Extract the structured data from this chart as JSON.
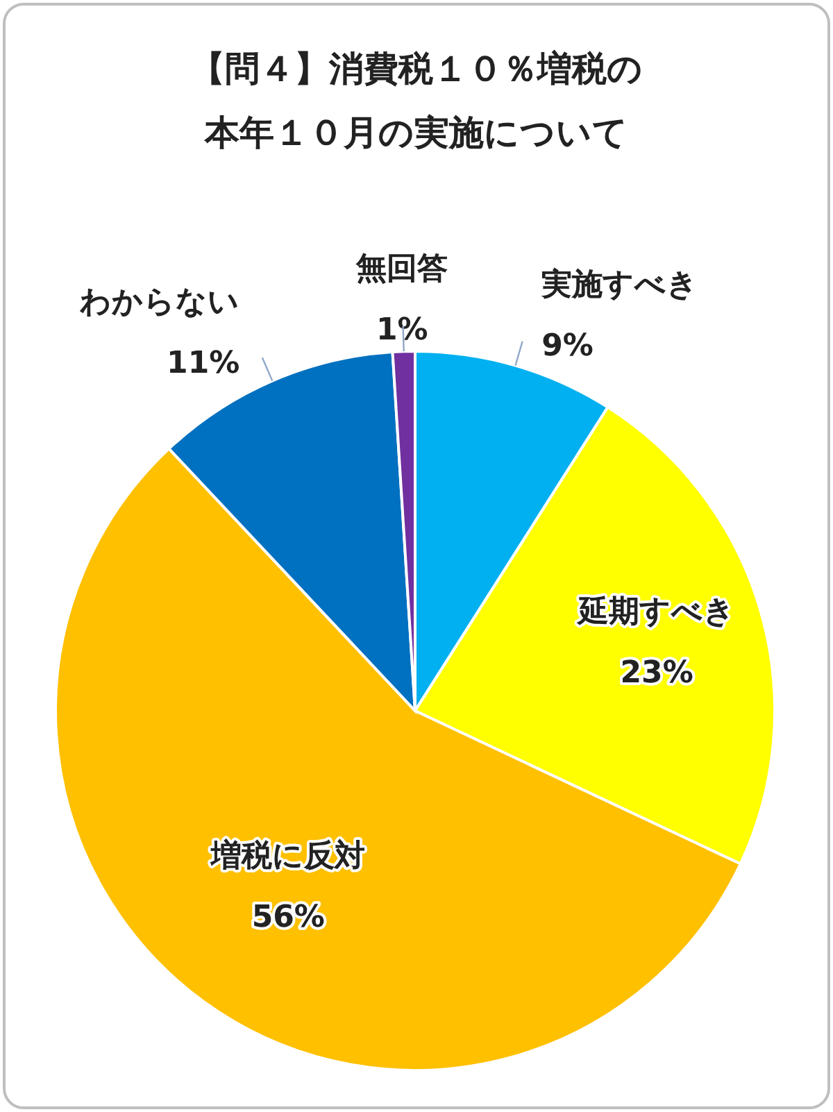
{
  "chart_data": {
    "type": "pie",
    "title": "【問４】消費税１０％増税の本年１０月の実施について",
    "categories": [
      "実施すべき",
      "延期すべき",
      "増税に反対",
      "わからない",
      "無回答"
    ],
    "values": [
      9,
      23,
      56,
      11,
      1
    ],
    "colors": [
      "#00b0f0",
      "#ffff00",
      "#ffc000",
      "#0070c0",
      "#7030a0"
    ],
    "value_labels": [
      "9%",
      "23%",
      "56%",
      "11%",
      "1%"
    ]
  }
}
